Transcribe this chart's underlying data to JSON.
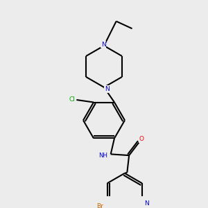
{
  "bg_color": "#ececec",
  "atom_colors": {
    "C": "#000000",
    "N": "#0000cc",
    "O": "#ff0000",
    "Cl": "#00aa00",
    "Br": "#cc6600"
  },
  "figsize": [
    3.0,
    3.0
  ],
  "dpi": 100
}
